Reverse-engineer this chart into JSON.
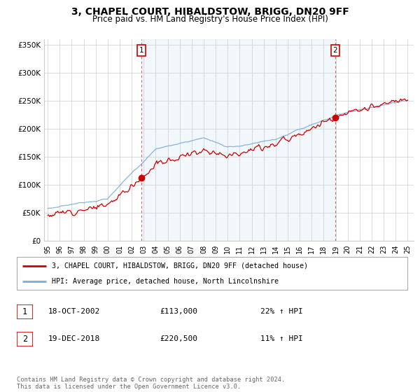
{
  "title": "3, CHAPEL COURT, HIBALDSTOW, BRIGG, DN20 9FF",
  "subtitle": "Price paid vs. HM Land Registry's House Price Index (HPI)",
  "title_fontsize": 10,
  "subtitle_fontsize": 8.5,
  "xlim_start": 1994.7,
  "xlim_end": 2025.5,
  "ylim_min": 0,
  "ylim_max": 360000,
  "sale1_x": 2002.8,
  "sale1_y": 113000,
  "sale1_label": "1",
  "sale2_x": 2018.97,
  "sale2_y": 220500,
  "sale2_label": "2",
  "red_line_color": "#cc0000",
  "blue_line_color": "#7aaddc",
  "vline_color": "#cc6666",
  "grid_color": "#cccccc",
  "fill_color": "#ddeeff",
  "background_color": "#ffffff",
  "legend_line1": "3, CHAPEL COURT, HIBALDSTOW, BRIGG, DN20 9FF (detached house)",
  "legend_line2": "HPI: Average price, detached house, North Lincolnshire",
  "table_row1_num": "1",
  "table_row1_date": "18-OCT-2002",
  "table_row1_price": "£113,000",
  "table_row1_hpi": "22% ↑ HPI",
  "table_row2_num": "2",
  "table_row2_date": "19-DEC-2018",
  "table_row2_price": "£220,500",
  "table_row2_hpi": "11% ↑ HPI",
  "footer": "Contains HM Land Registry data © Crown copyright and database right 2024.\nThis data is licensed under the Open Government Licence v3.0.",
  "yticks": [
    0,
    50000,
    100000,
    150000,
    200000,
    250000,
    300000,
    350000
  ],
  "ytick_labels": [
    "£0",
    "£50K",
    "£100K",
    "£150K",
    "£200K",
    "£250K",
    "£300K",
    "£350K"
  ],
  "xtick_years": [
    1995,
    1996,
    1997,
    1998,
    1999,
    2000,
    2001,
    2002,
    2003,
    2004,
    2005,
    2006,
    2007,
    2008,
    2009,
    2010,
    2011,
    2012,
    2013,
    2014,
    2015,
    2016,
    2017,
    2018,
    2019,
    2020,
    2021,
    2022,
    2023,
    2024,
    2025
  ],
  "xtick_labels": [
    "95",
    "96",
    "97",
    "98",
    "99",
    "00",
    "01",
    "02",
    "03",
    "04",
    "05",
    "06",
    "07",
    "08",
    "09",
    "10",
    "11",
    "12",
    "13",
    "14",
    "15",
    "16",
    "17",
    "18",
    "19",
    "20",
    "21",
    "22",
    "23",
    "24",
    "25"
  ]
}
